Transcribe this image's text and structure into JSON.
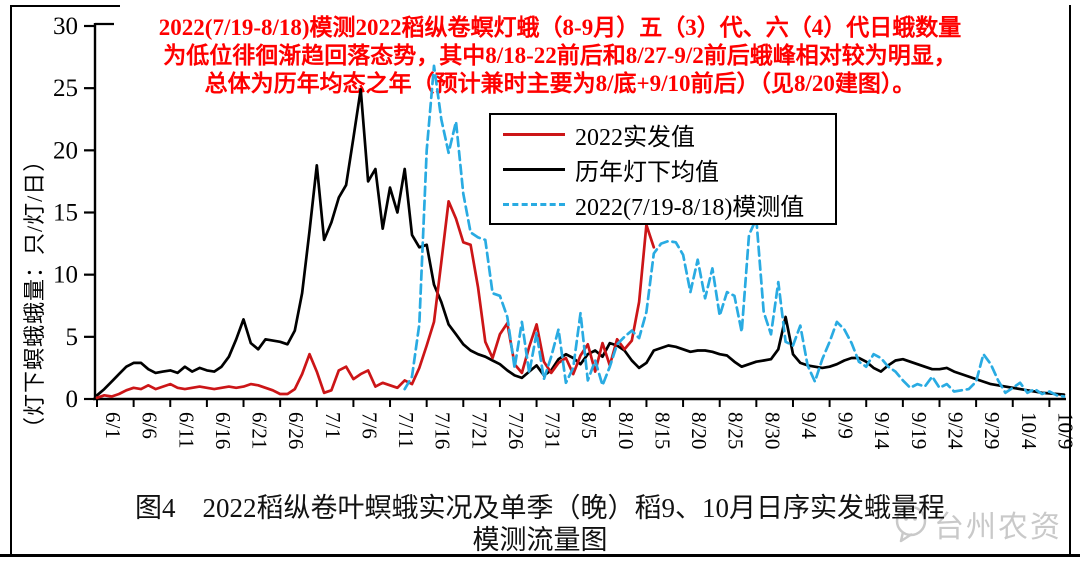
{
  "figure": {
    "title_lines": [
      "2022(7/19-8/18)模测2022稻纵卷螟灯蛾（8-9月）五（3）代、六（4）代日蛾数量",
      "为低位徘徊渐趋回落态势，其中8/18-22前后和8/27-9/2前后蛾峰相对较为明显，",
      "总体为历年均态之年（预计兼时主要为8/底+9/10前后）（见8/20建图）。"
    ],
    "title_color": "#ff0000",
    "caption_line1": "图4　2022稻纵卷叶螟蛾实况及单季（晚）稻9、10月日序实发蛾量程",
    "caption_line2": "模测流量图",
    "watermark": {
      "text": "台州农资",
      "icon": "speech-bubble-icon",
      "color": "#c9c9c9"
    }
  },
  "legend": {
    "items": [
      {
        "label": "2022实发值",
        "series": 1
      },
      {
        "label": "历年灯下均值",
        "series": 0
      },
      {
        "label": "2022(7/19-8/18)模测值",
        "series": 2
      }
    ]
  },
  "y_axis": {
    "label": "（灯下螟蛾蛾量：只/灯/日）",
    "ticks": [
      0,
      5,
      10,
      15,
      20,
      25,
      30
    ],
    "min": 0,
    "max": 30
  },
  "x_axis": {
    "start_date": "6/1",
    "tick_interval_days": 5,
    "tick_labels": [
      "6/1",
      "6/6",
      "6/11",
      "6/16",
      "6/21",
      "6/26",
      "7/1",
      "7/6",
      "7/11",
      "7/16",
      "7/21",
      "7/26",
      "7/31",
      "8/5",
      "8/10",
      "8/15",
      "8/20",
      "8/25",
      "8/30",
      "9/4",
      "9/9",
      "9/14",
      "9/19",
      "9/24",
      "9/29",
      "10/4",
      "10/9"
    ]
  },
  "chart_data": {
    "type": "line",
    "x_unit": "daily values, day 0 = 6/1",
    "ylim": [
      0,
      30
    ],
    "grid": false,
    "legend_position": "upper middle box",
    "series": [
      {
        "name": "历年灯下均值",
        "color": "#000000",
        "dash": false,
        "start_day": 0,
        "values": [
          0.3,
          0.8,
          1.4,
          2.0,
          2.6,
          2.9,
          2.9,
          2.4,
          2.1,
          2.2,
          2.3,
          2.1,
          2.6,
          2.2,
          2.5,
          2.3,
          2.2,
          2.6,
          3.4,
          4.8,
          6.4,
          4.5,
          4.0,
          4.8,
          4.7,
          4.6,
          4.4,
          5.5,
          8.5,
          13.5,
          18.8,
          12.8,
          14.2,
          16.2,
          17.2,
          21.0,
          24.9,
          17.5,
          18.5,
          13.7,
          17.0,
          15.0,
          18.5,
          13.2,
          12.2,
          12.4,
          9.2,
          7.8,
          6.0,
          5.2,
          4.4,
          3.9,
          3.6,
          3.4,
          3.1,
          2.8,
          2.3,
          1.9,
          1.7,
          2.2,
          2.7,
          1.9,
          2.3,
          3.2,
          3.6,
          3.3,
          2.8,
          3.6,
          3.9,
          3.4,
          4.5,
          4.3,
          3.9,
          3.1,
          2.5,
          2.9,
          3.9,
          4.1,
          4.3,
          4.2,
          4.0,
          3.8,
          3.9,
          3.9,
          3.8,
          3.6,
          3.5,
          3.0,
          2.6,
          2.8,
          3.0,
          3.1,
          3.2,
          4.0,
          6.6,
          3.6,
          2.9,
          2.7,
          2.6,
          2.5,
          2.6,
          2.8,
          3.1,
          3.3,
          3.3,
          3.0,
          2.5,
          2.2,
          2.7,
          3.1,
          3.2,
          3.0,
          2.8,
          2.6,
          2.4,
          2.4,
          2.5,
          2.2,
          2.0,
          1.8,
          1.6,
          1.4,
          1.2,
          1.1,
          1.0,
          0.9,
          0.8,
          0.7,
          0.6,
          0.5,
          0.45,
          0.4,
          0.35
        ]
      },
      {
        "name": "2022实发值",
        "color": "#cc1517",
        "dash": false,
        "start_day": 0,
        "values": [
          0.1,
          0.3,
          0.2,
          0.4,
          0.7,
          0.9,
          0.8,
          1.1,
          0.8,
          1.0,
          1.2,
          0.9,
          0.8,
          0.9,
          1.0,
          0.9,
          0.8,
          0.9,
          1.0,
          0.9,
          1.0,
          1.2,
          1.1,
          0.9,
          0.7,
          0.4,
          0.4,
          0.8,
          2.0,
          3.6,
          2.2,
          0.5,
          0.7,
          2.3,
          2.6,
          1.6,
          2.0,
          2.3,
          1.0,
          1.3,
          1.1,
          0.9,
          1.5,
          1.2,
          2.5,
          4.3,
          6.2,
          11.0,
          15.9,
          14.5,
          12.6,
          12.4,
          9.0,
          4.6,
          3.3,
          5.2,
          6.1,
          2.8,
          2.1,
          4.2,
          6.0,
          3.0,
          2.1,
          2.9,
          3.3,
          2.0,
          3.5,
          4.4,
          2.2,
          4.5,
          2.7,
          4.8,
          4.0,
          4.7,
          7.8,
          14.0,
          12.2
        ]
      },
      {
        "name": "2022(7/19-8/18)模测值",
        "color": "#29abe2",
        "dash": true,
        "start_day": 42,
        "values": [
          0.8,
          1.8,
          6.0,
          20.0,
          26.8,
          22.5,
          19.8,
          22.3,
          16.5,
          13.4,
          13.0,
          12.8,
          8.5,
          8.3,
          6.6,
          2.5,
          6.2,
          2.1,
          5.3,
          1.6,
          3.4,
          5.6,
          1.3,
          2.5,
          6.9,
          1.5,
          3.1,
          1.1,
          2.6,
          4.4,
          5.0,
          5.5,
          4.9,
          7.0,
          11.7,
          12.5,
          12.7,
          12.6,
          11.6,
          8.6,
          11.2,
          8.1,
          10.5,
          6.7,
          8.6,
          8.3,
          5.4,
          13.2,
          14.5,
          7.0,
          5.2,
          9.4,
          4.6,
          4.3,
          5.9,
          2.7,
          1.4,
          3.2,
          4.6,
          6.2,
          5.6,
          4.5,
          3.0,
          2.6,
          3.6,
          3.3,
          2.6,
          2.2,
          1.5,
          0.9,
          1.2,
          1.0,
          1.8,
          0.9,
          1.2,
          0.6,
          0.7,
          0.8,
          1.4,
          3.6,
          2.8,
          1.5,
          0.5,
          0.9,
          1.3,
          0.5,
          0.8,
          0.4,
          0.6,
          0.3,
          0.2
        ]
      }
    ]
  }
}
